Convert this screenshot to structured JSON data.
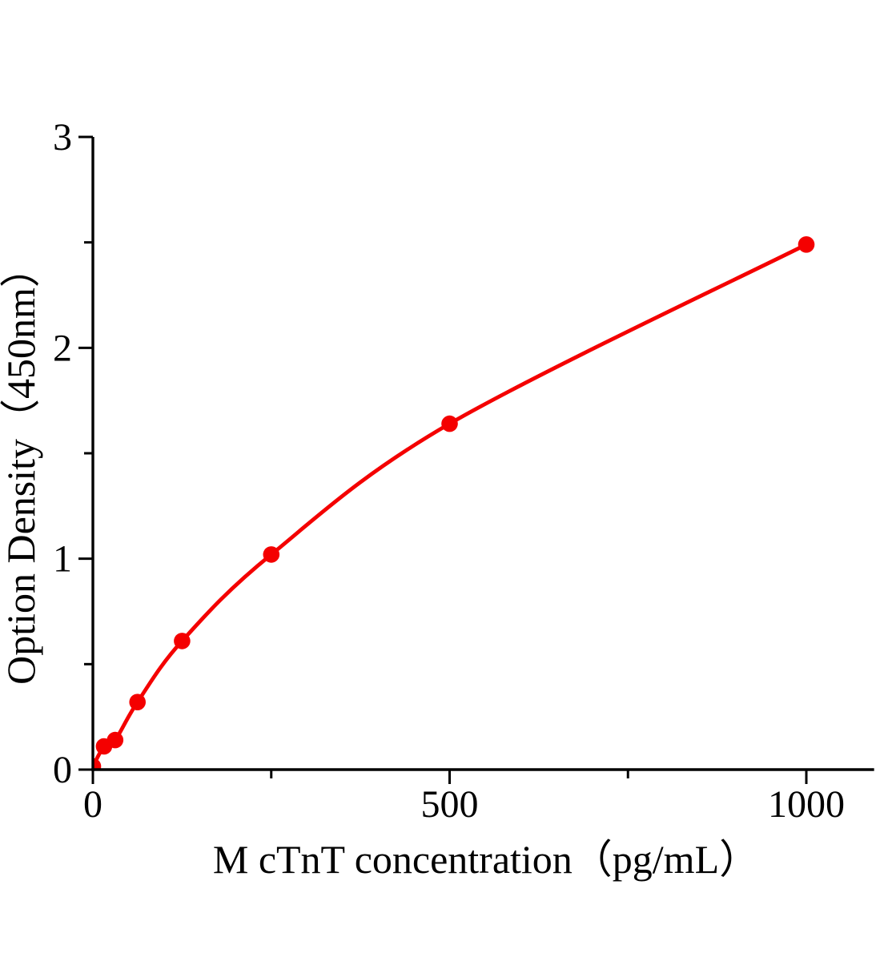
{
  "figure": {
    "background": "#ffffff"
  },
  "chart_data": {
    "type": "line",
    "title": "",
    "xlabel": "M cTnT concentration（pg/mL）",
    "ylabel": "Option Density（450nm）",
    "series": [
      {
        "name": "M cTnT standard curve",
        "color": "#f40000",
        "marker": "filled-circle",
        "x": [
          0,
          15.6,
          31.2,
          62.5,
          125,
          250,
          500,
          1000
        ],
        "y": [
          0.015,
          0.11,
          0.14,
          0.32,
          0.61,
          1.02,
          1.64,
          2.49
        ]
      }
    ],
    "xlim": [
      0,
      1095
    ],
    "ylim": [
      0,
      3
    ],
    "x_ticks": {
      "major": [
        0,
        500,
        1000
      ],
      "labels": [
        "0",
        "500",
        "1000"
      ],
      "minor": [
        250,
        750
      ]
    },
    "y_ticks": {
      "major": [
        0,
        1,
        2,
        3
      ],
      "labels": [
        "0",
        "1",
        "2",
        "3"
      ],
      "minor": [
        0.5,
        1.5,
        2.5
      ]
    },
    "grid": false,
    "legend": "none",
    "axis_color": "#000000"
  }
}
